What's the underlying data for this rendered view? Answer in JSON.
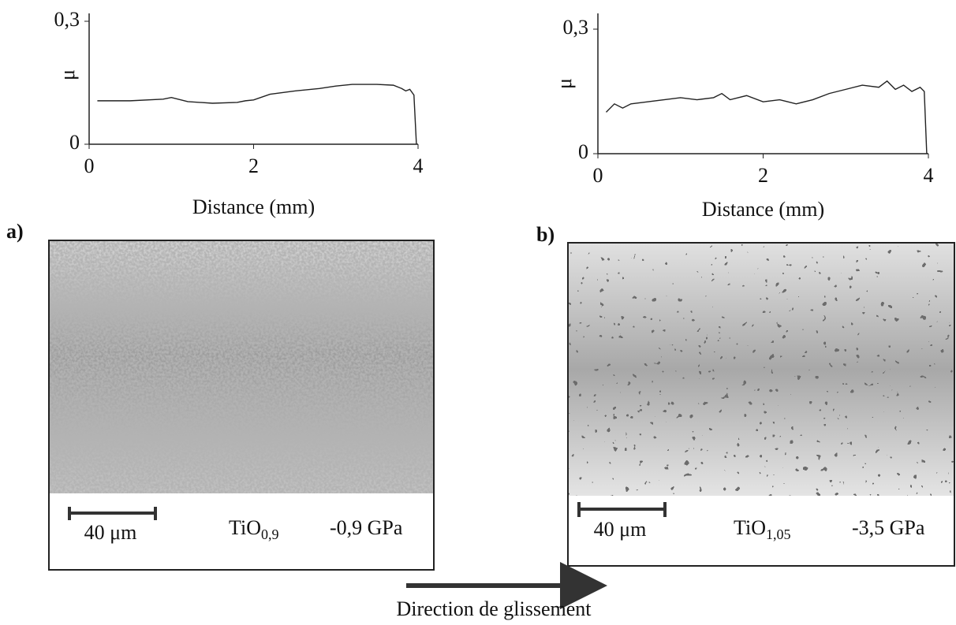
{
  "chart_data": [
    {
      "type": "line",
      "x_label": "Distance (mm)",
      "y_label": "μ",
      "xlim": [
        0,
        4
      ],
      "ylim": [
        0,
        0.3
      ],
      "xticks": [
        0,
        2,
        4
      ],
      "yticks": [
        0,
        {
          "value": 0.3,
          "label": "0,3"
        }
      ],
      "color": "#222222",
      "x": [
        0.1,
        0.5,
        0.9,
        1.0,
        1.2,
        1.5,
        1.8,
        1.9,
        2.0,
        2.2,
        2.5,
        2.8,
        3.0,
        3.2,
        3.5,
        3.7,
        3.8,
        3.85,
        3.9,
        3.95,
        3.98
      ],
      "values": [
        0.106,
        0.106,
        0.11,
        0.114,
        0.104,
        0.1,
        0.102,
        0.106,
        0.108,
        0.122,
        0.13,
        0.136,
        0.142,
        0.146,
        0.146,
        0.144,
        0.136,
        0.13,
        0.134,
        0.12,
        0
      ]
    },
    {
      "type": "line",
      "x_label": "Distance (mm)",
      "y_label": "μ",
      "xlim": [
        0,
        4
      ],
      "ylim": [
        0,
        0.3
      ],
      "xticks": [
        0,
        2,
        4
      ],
      "yticks": [
        0,
        {
          "value": 0.3,
          "label": "0,3"
        }
      ],
      "color": "#222222",
      "x": [
        0.1,
        0.2,
        0.3,
        0.4,
        0.6,
        0.8,
        1.0,
        1.2,
        1.4,
        1.5,
        1.6,
        1.8,
        2.0,
        2.2,
        2.4,
        2.6,
        2.8,
        3.0,
        3.2,
        3.4,
        3.5,
        3.6,
        3.7,
        3.8,
        3.9,
        3.95,
        3.98
      ],
      "values": [
        0.1,
        0.12,
        0.11,
        0.12,
        0.125,
        0.13,
        0.135,
        0.13,
        0.135,
        0.145,
        0.13,
        0.14,
        0.125,
        0.13,
        0.12,
        0.13,
        0.145,
        0.155,
        0.165,
        0.16,
        0.175,
        0.155,
        0.165,
        0.15,
        0.16,
        0.15,
        0
      ]
    }
  ],
  "panels": [
    {
      "label": "a)",
      "scale": "40 μm",
      "formula": "TiO",
      "formula_sub": "0,9",
      "stress": "-0,9 GPa"
    },
    {
      "label": "b)",
      "scale": "40 μm",
      "formula": "TiO",
      "formula_sub": "1,05",
      "stress": "-3,5 GPa"
    }
  ],
  "arrow_caption": "Direction de glissement"
}
